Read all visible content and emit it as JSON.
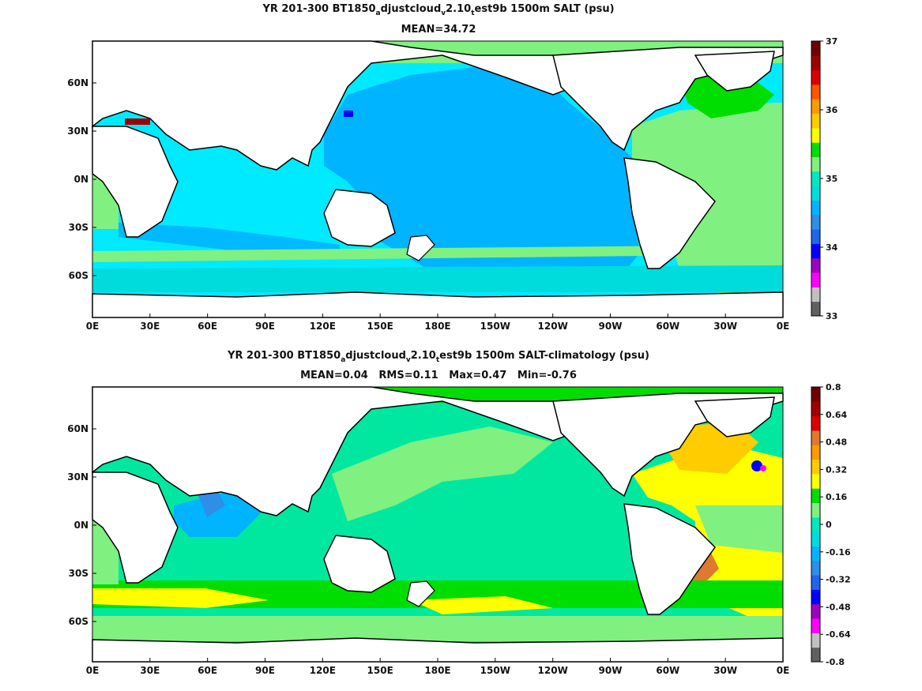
{
  "panel_top": {
    "title_prefix": "YR 201-300 BT1850",
    "title_sub1": "a",
    "title_mid": "djustcloud",
    "title_sub2": "v",
    "title_mid2": "2.10",
    "title_sub3": "t",
    "title_suffix": "est9b 1500m SALT (psu)",
    "subtitle": "MEAN=34.72",
    "colorbar": {
      "colors": [
        "#606060",
        "#c0c0c0",
        "#ff00ff",
        "#a000c0",
        "#0000ff",
        "#1e66ee",
        "#2e8ee8",
        "#00b4ff",
        "#00dcdc",
        "#00e8c0",
        "#80f080",
        "#00dd00",
        "#ffff00",
        "#ffcc00",
        "#ff9900",
        "#ff5500",
        "#dd0000",
        "#a00000",
        "#700000"
      ],
      "ticks": [
        "33",
        "34",
        "35",
        "36",
        "37"
      ]
    }
  },
  "panel_bottom": {
    "title_prefix": "YR 201-300 BT1850",
    "title_sub1": "a",
    "title_mid": "djustcloud",
    "title_sub2": "v",
    "title_mid2": "2.10",
    "title_sub3": "t",
    "title_suffix": "est9b 1500m SALT-climatology (psu)",
    "subtitle": "MEAN=0.04   RMS=0.11   Max=0.47   Min=-0.76",
    "colorbar": {
      "colors": [
        "#606060",
        "#c0c0c0",
        "#ff00ff",
        "#a000c0",
        "#0000ff",
        "#1e66ee",
        "#2e8ee8",
        "#00b4ff",
        "#00dcdc",
        "#00e8c0",
        "#80f080",
        "#00dd00",
        "#ffff00",
        "#ffcc00",
        "#ff9900",
        "#dd7a30",
        "#dd0000",
        "#a00000",
        "#700000"
      ],
      "ticks": [
        "0.8",
        "0.64",
        "0.48",
        "0.32",
        "0.16",
        "0",
        "-0.16",
        "-0.32",
        "-0.48",
        "-0.64",
        "-0.8"
      ]
    }
  },
  "axes": {
    "lat_ticks": [
      "60N",
      "30N",
      "0N",
      "30S",
      "60S"
    ],
    "lon_ticks": [
      "0E",
      "30E",
      "60E",
      "90E",
      "120E",
      "150E",
      "180E",
      "150W",
      "120W",
      "90W",
      "60W",
      "30W",
      "0E"
    ]
  },
  "colors": {
    "land": "#ffffff",
    "coast": "#000000",
    "salt_pacific": "#00b4ff",
    "salt_indian": "#00eaff",
    "salt_atlantic": "#80f080",
    "salt_north_atlantic": "#00dd00",
    "diff_main": "#00e8a0",
    "diff_light": "#80f080",
    "diff_green": "#00dd00",
    "diff_yellow": "#ffff00",
    "diff_orange": "#ffcc00"
  }
}
